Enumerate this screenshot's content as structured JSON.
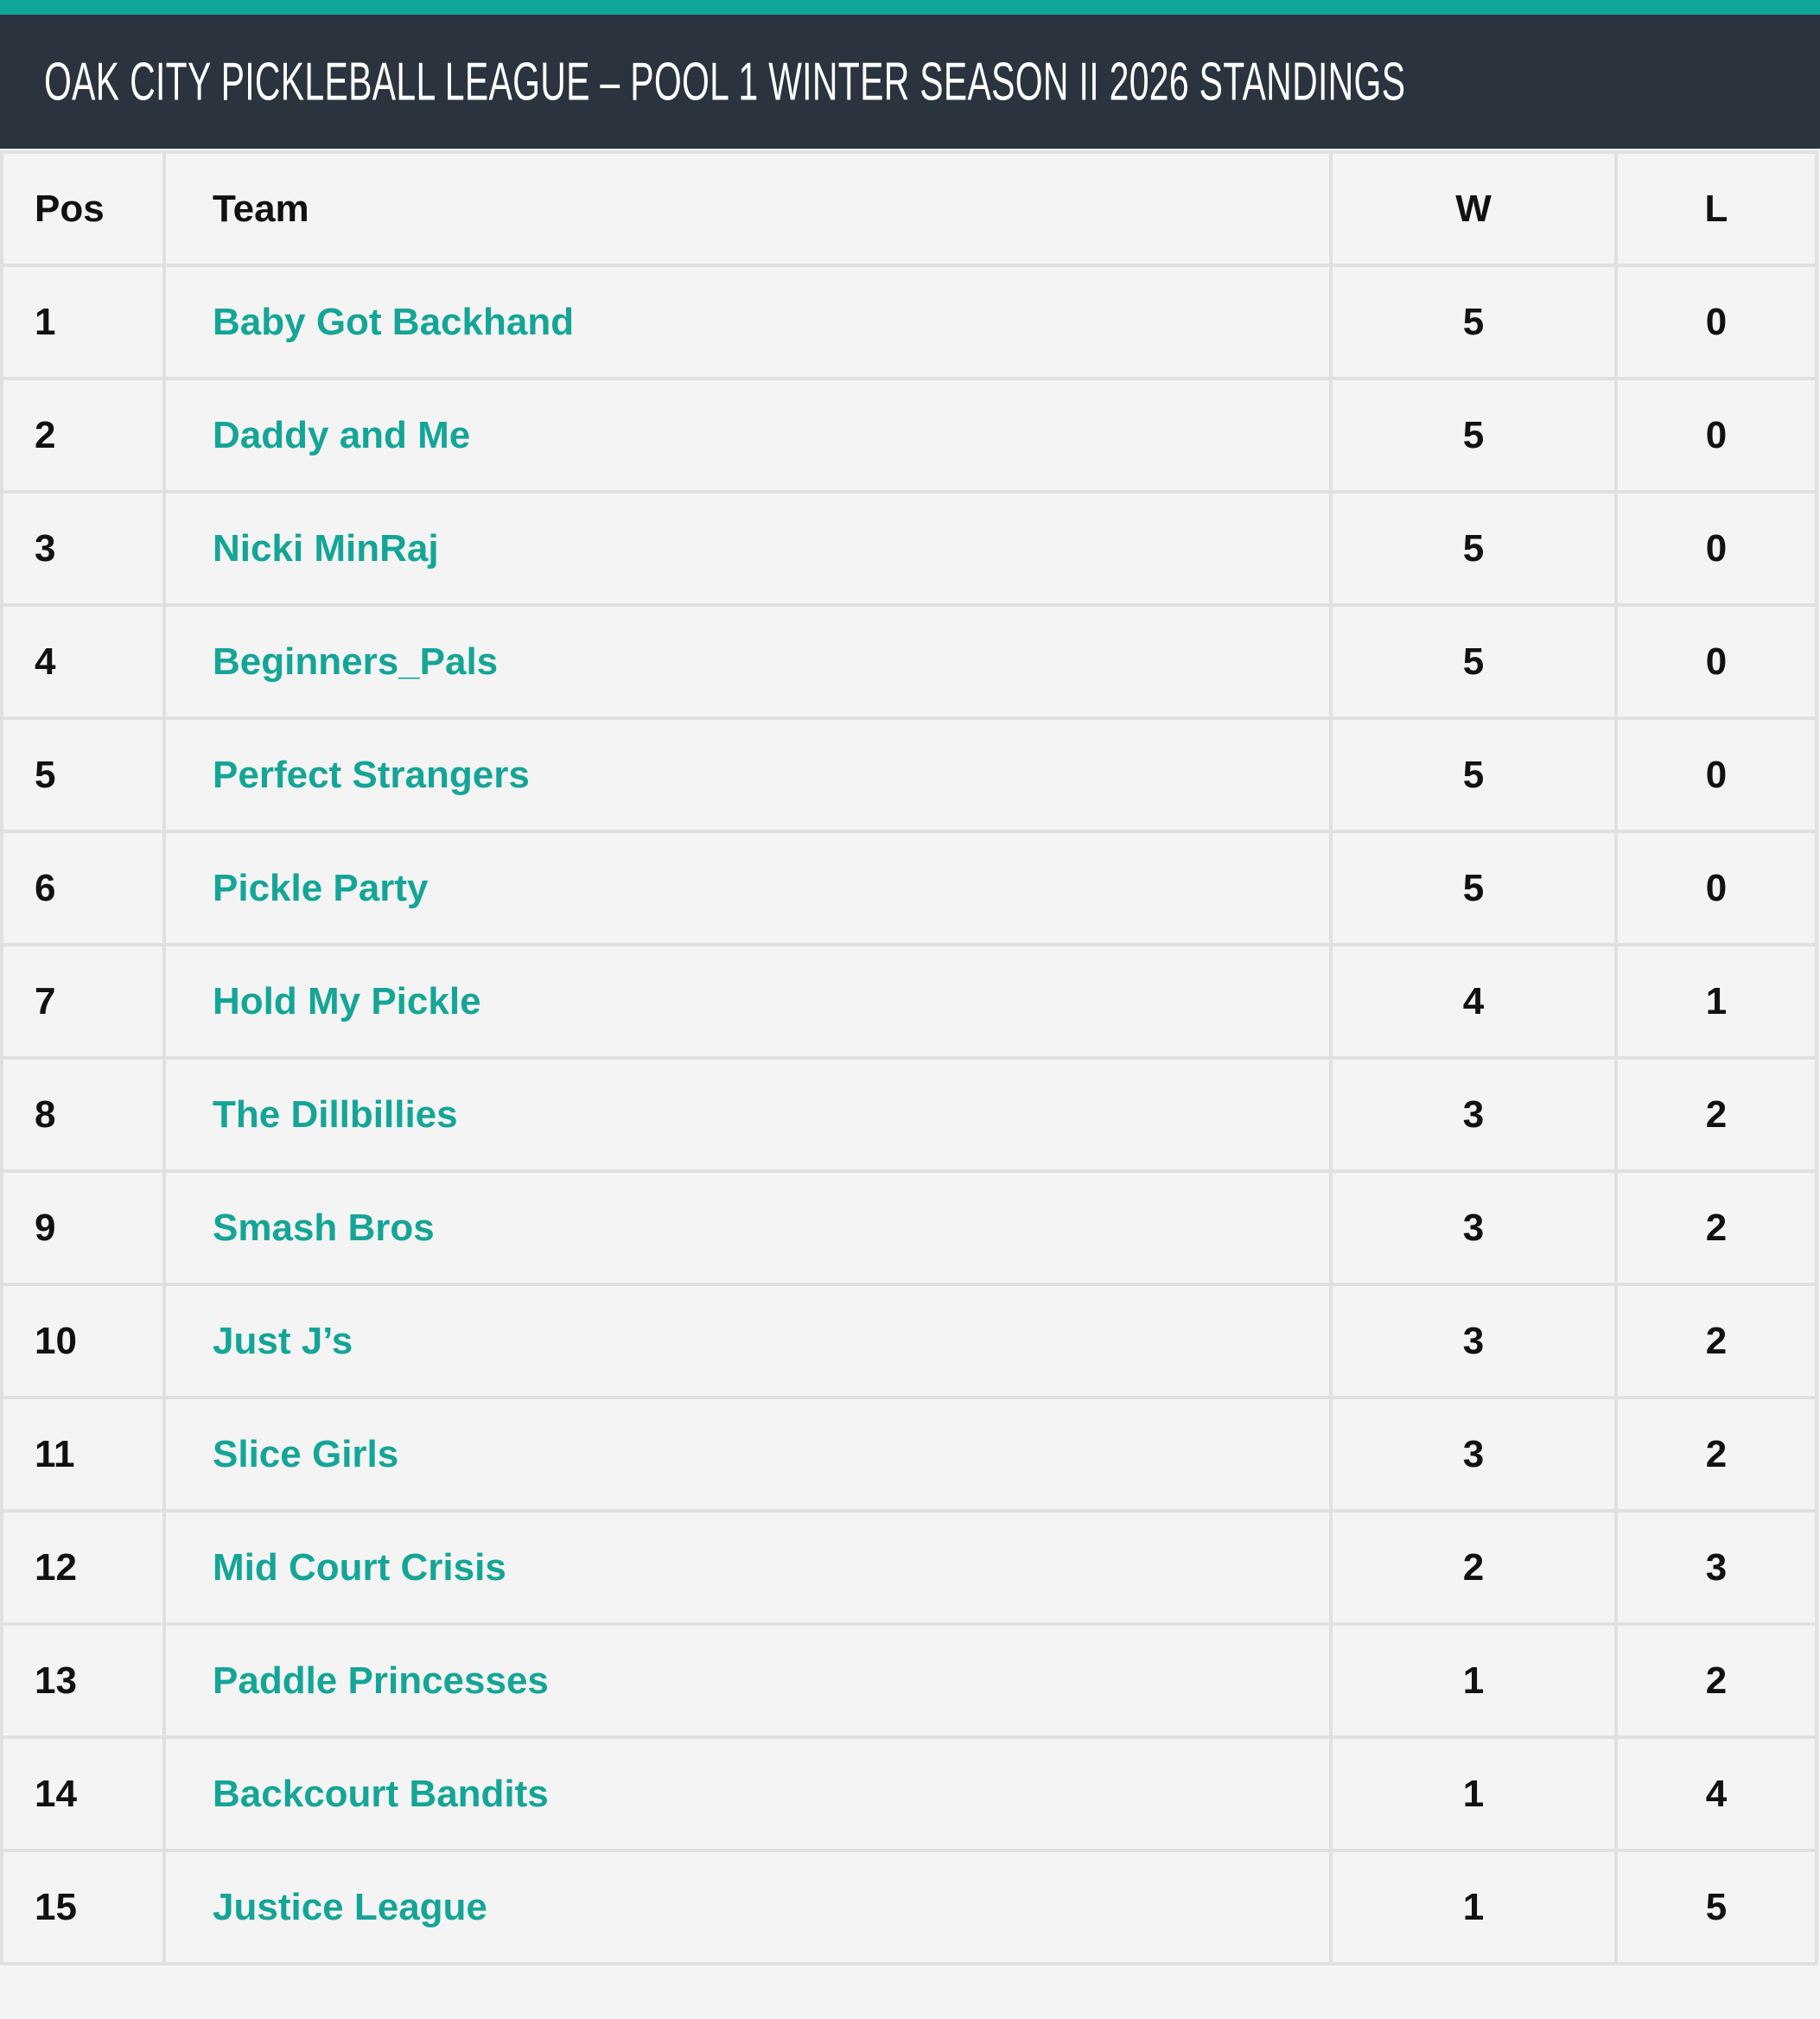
{
  "title": "OAK CITY PICKLEBALL LEAGUE – POOL 1 WINTER SEASON II 2026 STANDINGS",
  "colors": {
    "accent": "#10a69a",
    "header_bg": "#2b343e",
    "team_link": "#15a597"
  },
  "columns": {
    "pos": "Pos",
    "team": "Team",
    "w": "W",
    "l": "L"
  },
  "rows": [
    {
      "pos": "1",
      "team": "Baby Got Backhand",
      "w": "5",
      "l": "0"
    },
    {
      "pos": "2",
      "team": "Daddy and Me",
      "w": "5",
      "l": "0"
    },
    {
      "pos": "3",
      "team": "Nicki MinRaj",
      "w": "5",
      "l": "0"
    },
    {
      "pos": "4",
      "team": "Beginners_Pals",
      "w": "5",
      "l": "0"
    },
    {
      "pos": "5",
      "team": "Perfect Strangers",
      "w": "5",
      "l": "0"
    },
    {
      "pos": "6",
      "team": "Pickle Party",
      "w": "5",
      "l": "0"
    },
    {
      "pos": "7",
      "team": "Hold My Pickle",
      "w": "4",
      "l": "1"
    },
    {
      "pos": "8",
      "team": "The Dillbillies",
      "w": "3",
      "l": "2"
    },
    {
      "pos": "9",
      "team": "Smash Bros",
      "w": "3",
      "l": "2"
    },
    {
      "pos": "10",
      "team": "Just J’s",
      "w": "3",
      "l": "2"
    },
    {
      "pos": "11",
      "team": "Slice Girls",
      "w": "3",
      "l": "2"
    },
    {
      "pos": "12",
      "team": "Mid Court Crisis",
      "w": "2",
      "l": "3"
    },
    {
      "pos": "13",
      "team": "Paddle Princesses",
      "w": "1",
      "l": "2"
    },
    {
      "pos": "14",
      "team": "Backcourt Bandits",
      "w": "1",
      "l": "4"
    },
    {
      "pos": "15",
      "team": "Justice League",
      "w": "1",
      "l": "5"
    }
  ]
}
